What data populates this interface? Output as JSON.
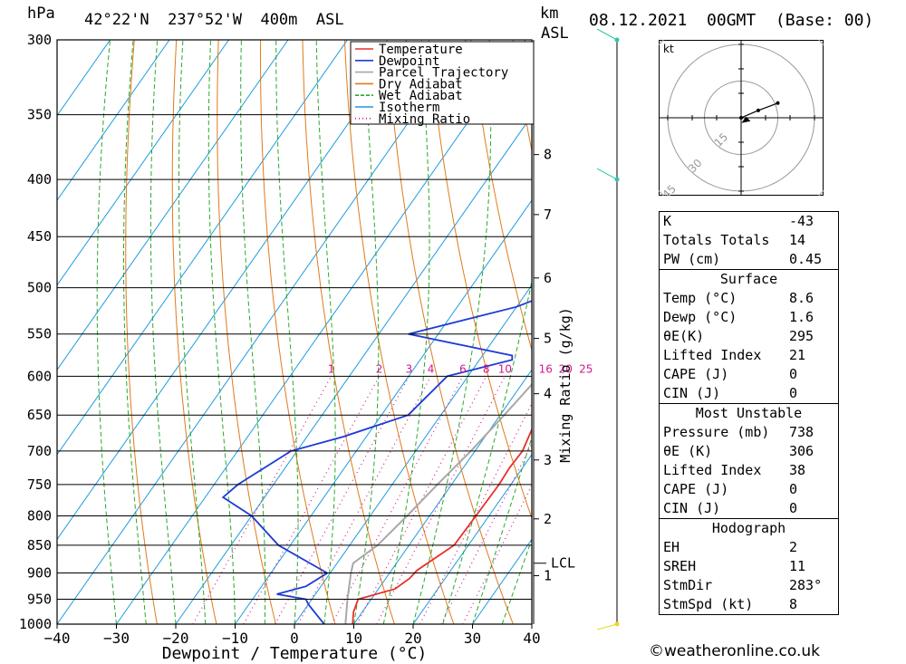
{
  "header": {
    "pressure_unit": "hPa",
    "location": "42°22'N  237°52'W  400m  ASL",
    "km_label": "km",
    "asl_label": "ASL",
    "datetime": "08.12.2021  00GMT  (Base: 00)"
  },
  "chart_data": {
    "type": "line",
    "xlabel": "Dewpoint / Temperature (°C)",
    "right_label": "Mixing Ratio (g/kg)",
    "xlim": [
      -40,
      40
    ],
    "pressure_range": [
      1000,
      300
    ],
    "x_ticks": [
      -40,
      -30,
      -20,
      -10,
      0,
      10,
      20,
      30,
      40
    ],
    "pressure_ticks": [
      300,
      350,
      400,
      450,
      500,
      550,
      600,
      650,
      700,
      750,
      800,
      850,
      900,
      950,
      1000
    ],
    "km_ticks": [
      {
        "label": "8",
        "p": 380
      },
      {
        "label": "7",
        "p": 430
      },
      {
        "label": "6",
        "p": 490
      },
      {
        "label": "5",
        "p": 555
      },
      {
        "label": "4",
        "p": 622
      },
      {
        "label": "3",
        "p": 713
      },
      {
        "label": "2",
        "p": 805
      },
      {
        "label": "1",
        "p": 905
      }
    ],
    "lcl": {
      "label": "LCL",
      "p": 882
    },
    "mixing_ratio_labels": [
      "1",
      "2",
      "3",
      "4",
      "6",
      "8",
      "10",
      "16",
      "20",
      "25"
    ],
    "legend": [
      {
        "name": "Temperature",
        "color": "#e8302a",
        "style": "solid"
      },
      {
        "name": "Dewpoint",
        "color": "#1d3bd6",
        "style": "solid"
      },
      {
        "name": "Parcel Trajectory",
        "color": "#a8a8a8",
        "style": "solid"
      },
      {
        "name": "Dry Adiabat",
        "color": "#e07a1a",
        "style": "solid"
      },
      {
        "name": "Wet Adiabat",
        "color": "#2aa82a",
        "style": "dashed"
      },
      {
        "name": "Isotherm",
        "color": "#1e9be0",
        "style": "solid"
      },
      {
        "name": "Mixing Ratio",
        "color": "#d01890",
        "style": "dotted"
      }
    ],
    "series": [
      {
        "name": "Temperature",
        "points": [
          [
            1000,
            9.8
          ],
          [
            975,
            8.5
          ],
          [
            950,
            7.8
          ],
          [
            930,
            12.8
          ],
          [
            910,
            14.0
          ],
          [
            895,
            14.3
          ],
          [
            850,
            17.6
          ],
          [
            800,
            17.8
          ],
          [
            750,
            18.0
          ],
          [
            725,
            17.8
          ],
          [
            700,
            18.0
          ],
          [
            650,
            16.4
          ],
          [
            600,
            14.4
          ],
          [
            560,
            14.5
          ],
          [
            545,
            14.2
          ],
          [
            500,
            12.0
          ],
          [
            450,
            8.0
          ],
          [
            400,
            3.5
          ],
          [
            350,
            -1.5
          ],
          [
            300,
            -3.0
          ]
        ]
      },
      {
        "name": "Dewpoint",
        "points": [
          [
            1000,
            5.0
          ],
          [
            960,
            0.0
          ],
          [
            950,
            -1.0
          ],
          [
            940,
            -6.5
          ],
          [
            925,
            -2.5
          ],
          [
            900,
            -0.5
          ],
          [
            850,
            -12.0
          ],
          [
            800,
            -20.0
          ],
          [
            770,
            -27.0
          ],
          [
            750,
            -26.0
          ],
          [
            700,
            -21.0
          ],
          [
            680,
            -14.0
          ],
          [
            650,
            -5.5
          ],
          [
            600,
            -3.5
          ],
          [
            580,
            5.5
          ],
          [
            575,
            5.0
          ],
          [
            550,
            -15.0
          ],
          [
            520,
            0.0
          ],
          [
            500,
            6.0
          ],
          [
            450,
            21.0
          ],
          [
            420,
            25.0
          ],
          [
            400,
            25.0
          ],
          [
            385,
            30.0
          ],
          [
            370,
            29.0
          ],
          [
            350,
            33.0
          ],
          [
            300,
            40.0
          ]
        ]
      },
      {
        "name": "Parcel Trajectory",
        "points": [
          [
            1000,
            8.6
          ],
          [
            950,
            6.0
          ],
          [
            900,
            3.5
          ],
          [
            882,
            2.7
          ],
          [
            850,
            4.7
          ],
          [
            800,
            6.2
          ],
          [
            750,
            7.6
          ],
          [
            700,
            9.3
          ],
          [
            650,
            10.7
          ],
          [
            600,
            12.0
          ],
          [
            550,
            13.2
          ],
          [
            500,
            14.2
          ],
          [
            450,
            15.2
          ],
          [
            400,
            15.9
          ],
          [
            350,
            16.6
          ],
          [
            330,
            17.3
          ]
        ]
      }
    ]
  },
  "hodograph": {
    "unit": "kt",
    "rings": [
      "15",
      "30",
      "45"
    ],
    "wind_points_kt": [
      [
        0,
        0
      ],
      [
        7,
        3
      ],
      [
        15,
        6
      ]
    ],
    "storm_motion_kt": [
      2,
      -1
    ]
  },
  "indices": {
    "k_label": "K",
    "k": "-43",
    "tt_label": "Totals Totals",
    "tt": "14",
    "pw_label": "PW (cm)",
    "pw": "0.45",
    "surface_title": "Surface",
    "s_temp_label": "Temp (°C)",
    "s_temp": "8.6",
    "s_dewp_label": "Dewp (°C)",
    "s_dewp": "1.6",
    "s_theta_label": "θE(K)",
    "s_theta": "295",
    "s_li_label": "Lifted Index",
    "s_li": "21",
    "s_cape_label": "CAPE (J)",
    "s_cape": "0",
    "s_cin_label": "CIN (J)",
    "s_cin": "0",
    "mu_title": "Most Unstable",
    "mu_pres_label": "Pressure (mb)",
    "mu_pres": "738",
    "mu_theta_label": "θE (K)",
    "mu_theta": "306",
    "mu_li_label": "Lifted Index",
    "mu_li": "38",
    "mu_cape_label": "CAPE (J)",
    "mu_cape": "0",
    "mu_cin_label": "CIN (J)",
    "mu_cin": "0",
    "hodo_title": "Hodograph",
    "eh_label": "EH",
    "eh": "2",
    "sreh_label": "SREH",
    "sreh": "11",
    "stmdir_label": "StmDir",
    "stmdir": "283°",
    "stmspd_label": "StmSpd (kt)",
    "stmspd": "8"
  },
  "footer": {
    "copyright": "©weatheronline.co.uk"
  }
}
